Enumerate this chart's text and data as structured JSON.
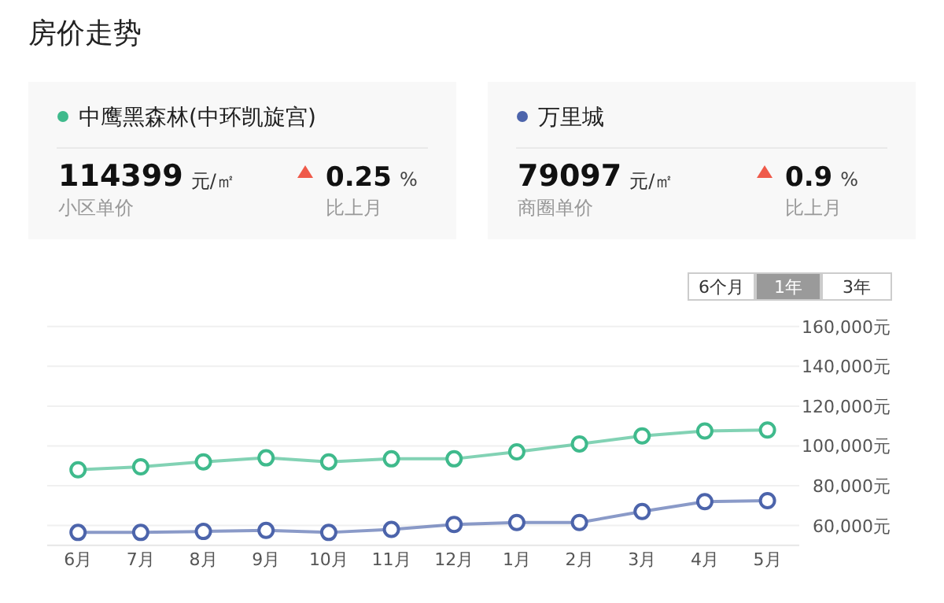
{
  "chart_data": {
    "type": "line",
    "title": "房价走势",
    "categories": [
      "6月",
      "7月",
      "8月",
      "9月",
      "10月",
      "11月",
      "12月",
      "1月",
      "2月",
      "3月",
      "4月",
      "5月"
    ],
    "series": [
      {
        "name": "中鹰黑森林(中环凯旋宫)",
        "color": "#3fba8c",
        "values": [
          88000,
          89500,
          92000,
          94000,
          92000,
          93500,
          93500,
          97000,
          101000,
          105000,
          107500,
          108000
        ]
      },
      {
        "name": "万里城",
        "color": "#4c64ab",
        "values": [
          56500,
          56500,
          57000,
          57500,
          56500,
          58000,
          60500,
          61500,
          61500,
          67000,
          72000,
          72500
        ]
      }
    ],
    "ylim": [
      50000,
      160000
    ],
    "yticks": [
      {
        "value": 60000,
        "label": "60,000元"
      },
      {
        "value": 80000,
        "label": "80,000元"
      },
      {
        "value": 100000,
        "label": "100,000元"
      },
      {
        "value": 120000,
        "label": "120,000元"
      },
      {
        "value": 140000,
        "label": "140,000元"
      },
      {
        "value": 160000,
        "label": "160,000元"
      }
    ],
    "grid": "y",
    "legend": "top",
    "marker": "circle",
    "line_style": "solid",
    "annotations": [
      "114399",
      "元/㎡",
      "小区单价",
      "0.25",
      "%",
      "比上月",
      "79097",
      "元/㎡",
      "商圈单价",
      "0.9",
      "%",
      "比上月",
      "6个月",
      "1年",
      "3年"
    ]
  }
}
